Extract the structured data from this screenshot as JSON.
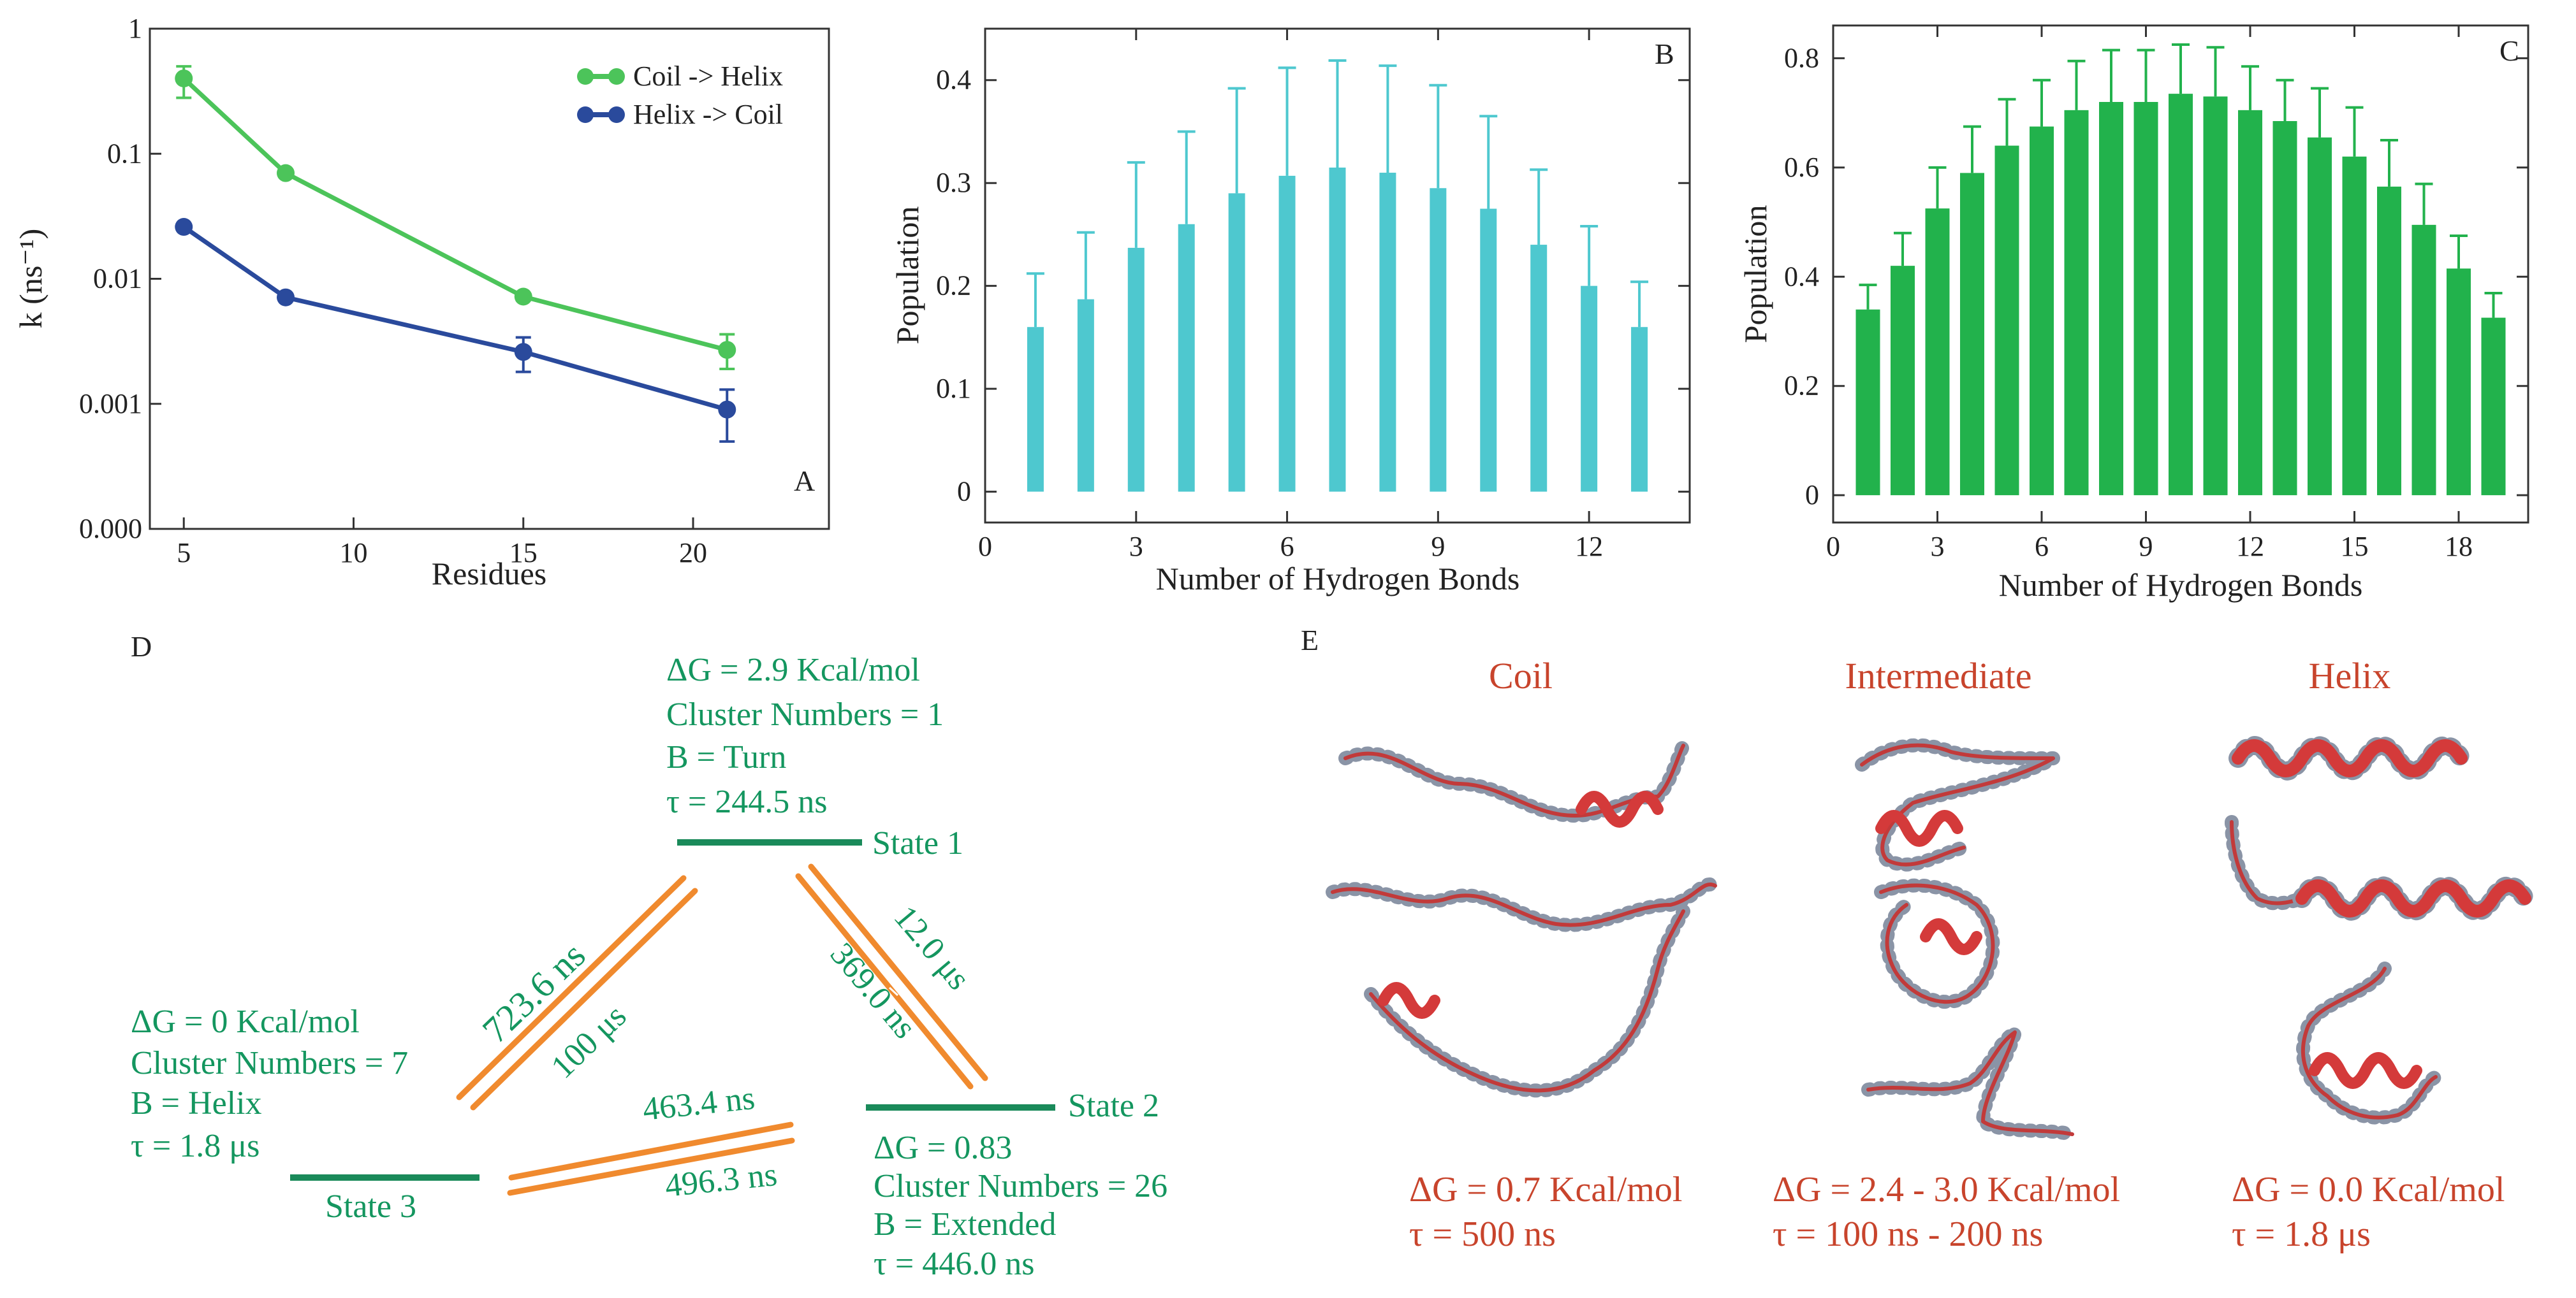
{
  "colors": {
    "coil_helix_line": "#4cc45a",
    "helix_coil_line": "#2a4a9c",
    "panel_b_bar": "#4ec8cf",
    "panel_c_bar": "#22b24c",
    "state_line": "#1a8a5a",
    "arrow": "#f08a2e",
    "state_text": "#14965f",
    "structure_text": "#c8442c",
    "ribbon": "#d43a3a",
    "atoms": "#8a94a6"
  },
  "chart_data": [
    {
      "panel": "A",
      "type": "line",
      "yscale": "log",
      "xlabel": "Residues",
      "ylabel": "k (ns⁻¹)",
      "xlim": [
        4,
        24
      ],
      "ylim": [
        0.0001,
        1
      ],
      "xticks": [
        5,
        10,
        15,
        20
      ],
      "yticks": [
        {
          "value": 1,
          "label": "1"
        },
        {
          "value": 0.1,
          "label": "0.1"
        },
        {
          "value": 0.01,
          "label": "0.01"
        },
        {
          "value": 0.001,
          "label": "0.001"
        },
        {
          "value": 0.0001,
          "label": "0.000"
        }
      ],
      "x": [
        5,
        8,
        15,
        21
      ],
      "series": [
        {
          "name": "Coil -> Helix",
          "color": "#4cc45a",
          "values": [
            0.4,
            0.07,
            0.0072,
            0.0027
          ],
          "err_low": [
            0.28,
            0.066,
            0.0068,
            0.0019
          ],
          "err_high": [
            0.5,
            0.074,
            0.0076,
            0.0036
          ]
        },
        {
          "name": "Helix -> Coil",
          "color": "#2a4a9c",
          "values": [
            0.026,
            0.0071,
            0.0026,
            0.0009
          ],
          "err_low": [
            0.025,
            0.0068,
            0.0018,
            0.0005
          ],
          "err_high": [
            0.027,
            0.0074,
            0.0034,
            0.0013
          ]
        }
      ],
      "legend_position": "top-right"
    },
    {
      "panel": "B",
      "type": "bar",
      "xlabel": "Number of Hydrogen Bonds",
      "ylabel": "Population",
      "xlim": [
        0,
        14
      ],
      "ylim": [
        -0.03,
        0.45
      ],
      "xticks": [
        0,
        3,
        6,
        9,
        12
      ],
      "yticks": [
        0,
        0.1,
        0.2,
        0.3,
        0.4
      ],
      "x": [
        1,
        2,
        3,
        4,
        5,
        6,
        7,
        8,
        9,
        10,
        11,
        12,
        13
      ],
      "values": [
        0.16,
        0.187,
        0.237,
        0.26,
        0.29,
        0.307,
        0.315,
        0.31,
        0.295,
        0.275,
        0.24,
        0.2,
        0.16
      ],
      "errors": [
        0.052,
        0.065,
        0.083,
        0.09,
        0.102,
        0.105,
        0.104,
        0.104,
        0.1,
        0.09,
        0.073,
        0.058,
        0.044
      ]
    },
    {
      "panel": "C",
      "type": "bar",
      "xlabel": "Number of Hydrogen Bonds",
      "ylabel": "Population",
      "xlim": [
        0,
        20
      ],
      "ylim": [
        -0.05,
        0.86
      ],
      "xticks": [
        0,
        3,
        6,
        9,
        12,
        15,
        18
      ],
      "yticks": [
        0,
        0.2,
        0.4,
        0.6,
        0.8
      ],
      "x": [
        1,
        2,
        3,
        4,
        5,
        6,
        7,
        8,
        9,
        10,
        11,
        12,
        13,
        14,
        15,
        16,
        17,
        18,
        19
      ],
      "values": [
        0.34,
        0.42,
        0.525,
        0.59,
        0.64,
        0.675,
        0.705,
        0.72,
        0.72,
        0.735,
        0.73,
        0.705,
        0.685,
        0.655,
        0.62,
        0.565,
        0.495,
        0.415,
        0.325
      ],
      "errors": [
        0.045,
        0.06,
        0.075,
        0.085,
        0.085,
        0.085,
        0.09,
        0.095,
        0.095,
        0.09,
        0.09,
        0.08,
        0.075,
        0.09,
        0.09,
        0.085,
        0.075,
        0.06,
        0.045
      ]
    }
  ],
  "panels": {
    "a": {
      "label": "A"
    },
    "b": {
      "label": "B"
    },
    "c": {
      "label": "C"
    },
    "d": {
      "label": "D",
      "state1": {
        "name": "State 1",
        "dg": "ΔG = 2.9 Kcal/mol",
        "cluster": "Cluster Numbers = 1",
        "b": "B = Turn",
        "tau": "τ = 244.5 ns"
      },
      "state2": {
        "name": "State 2",
        "dg": "ΔG = 0.83",
        "cluster": "Cluster Numbers = 26",
        "b": "B = Extended",
        "tau": "τ = 446.0 ns"
      },
      "state3": {
        "name": "State 3",
        "dg": "ΔG = 0 Kcal/mol",
        "cluster": "Cluster Numbers = 7",
        "b": "B = Helix",
        "tau": "τ = 1.8 μs"
      },
      "transitions": {
        "s3_to_s1": "723.6 ns",
        "s1_to_s3": "100 μs",
        "s1_to_s2": "12.0 μs",
        "s2_to_s1": "369.0 ns",
        "s3_to_s2": "463.4 ns",
        "s2_to_s3": "496.3 ns"
      }
    },
    "e": {
      "label": "E",
      "coil": {
        "title": "Coil",
        "dg": "ΔG = 0.7 Kcal/mol",
        "tau": "τ = 500 ns"
      },
      "intermediate": {
        "title": "Intermediate",
        "dg": "ΔG = 2.4 - 3.0 Kcal/mol",
        "tau": "τ = 100 ns - 200 ns"
      },
      "helix": {
        "title": "Helix",
        "dg": "ΔG = 0.0 Kcal/mol",
        "tau": "τ = 1.8  μs"
      }
    }
  }
}
